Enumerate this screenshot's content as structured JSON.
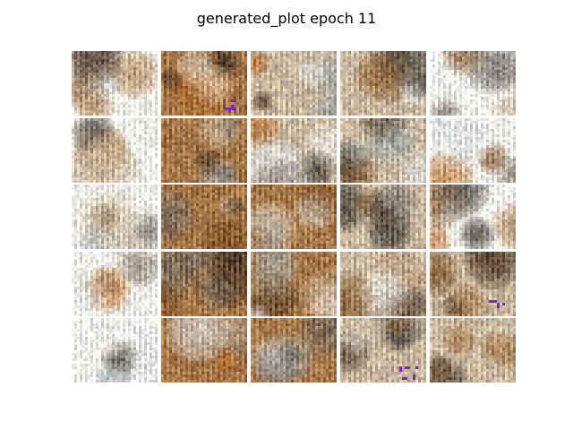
{
  "figure": {
    "title": "generated_plot epoch 11"
  },
  "grid": {
    "rows": 5,
    "cols": 5,
    "image_count": 25,
    "content": "GAN-generated low-resolution samples with vertical stripe artifacts",
    "palette": [
      "#f2f0ea",
      "#c9b8a0",
      "#a57648",
      "#7a4a20",
      "#4a3422",
      "#2a2520",
      "#9aa6a8",
      "#d9dedf",
      "#b46a2a",
      "#6e6a66"
    ]
  }
}
